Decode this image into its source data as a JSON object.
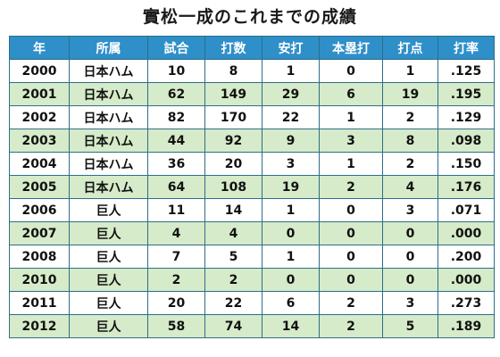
{
  "title": "實松一成のこれまでの成績",
  "table": {
    "headers": [
      "年",
      "所属",
      "試合",
      "打数",
      "安打",
      "本塁打",
      "打点",
      "打率"
    ],
    "rows": [
      [
        "2000",
        "日本ハム",
        "10",
        "8",
        "1",
        "0",
        "1",
        ".125"
      ],
      [
        "2001",
        "日本ハム",
        "62",
        "149",
        "29",
        "6",
        "19",
        ".195"
      ],
      [
        "2002",
        "日本ハム",
        "82",
        "170",
        "22",
        "1",
        "2",
        ".129"
      ],
      [
        "2003",
        "日本ハム",
        "44",
        "92",
        "9",
        "3",
        "8",
        ".098"
      ],
      [
        "2004",
        "日本ハム",
        "36",
        "20",
        "3",
        "1",
        "2",
        ".150"
      ],
      [
        "2005",
        "日本ハム",
        "64",
        "108",
        "19",
        "2",
        "4",
        ".176"
      ],
      [
        "2006",
        "巨人",
        "11",
        "14",
        "1",
        "0",
        "3",
        ".071"
      ],
      [
        "2007",
        "巨人",
        "4",
        "4",
        "0",
        "0",
        "0",
        ".000"
      ],
      [
        "2008",
        "巨人",
        "7",
        "5",
        "1",
        "0",
        "0",
        ".200"
      ],
      [
        "2010",
        "巨人",
        "2",
        "2",
        "0",
        "0",
        "0",
        ".000"
      ],
      [
        "2011",
        "巨人",
        "20",
        "22",
        "6",
        "2",
        "3",
        ".273"
      ],
      [
        "2012",
        "巨人",
        "58",
        "74",
        "14",
        "2",
        "5",
        ".189"
      ]
    ]
  },
  "colors": {
    "header_bg": "#2f8fc9",
    "row_alt_bg": "#d6ebc9",
    "border": "#2d6e8a"
  }
}
